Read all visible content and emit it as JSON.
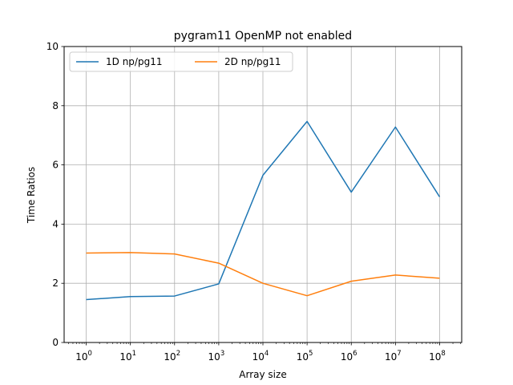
{
  "chart_data": {
    "type": "line",
    "title": "pygram11 OpenMP not enabled",
    "xlabel": "Array size",
    "ylabel": "Time Ratios",
    "x_scale": "log",
    "x": [
      1,
      10,
      100,
      1000,
      10000,
      100000,
      1000000,
      10000000,
      100000000
    ],
    "x_tick_labels": [
      {
        "base": "10",
        "exp": "0"
      },
      {
        "base": "10",
        "exp": "1"
      },
      {
        "base": "10",
        "exp": "2"
      },
      {
        "base": "10",
        "exp": "3"
      },
      {
        "base": "10",
        "exp": "4"
      },
      {
        "base": "10",
        "exp": "5"
      },
      {
        "base": "10",
        "exp": "6"
      },
      {
        "base": "10",
        "exp": "7"
      },
      {
        "base": "10",
        "exp": "8"
      }
    ],
    "ylim": [
      0,
      10
    ],
    "y_ticks": [
      0,
      2,
      4,
      6,
      8,
      10
    ],
    "grid": true,
    "legend_position": "top-left",
    "series": [
      {
        "name": "1D np/pg11",
        "color": "#1f77b4",
        "values": [
          1.45,
          1.55,
          1.57,
          1.98,
          5.65,
          7.47,
          5.08,
          7.28,
          4.92
        ]
      },
      {
        "name": "2D np/pg11",
        "color": "#ff7f0e",
        "values": [
          3.02,
          3.04,
          2.99,
          2.68,
          2.0,
          1.58,
          2.07,
          2.28,
          2.17
        ]
      }
    ]
  }
}
